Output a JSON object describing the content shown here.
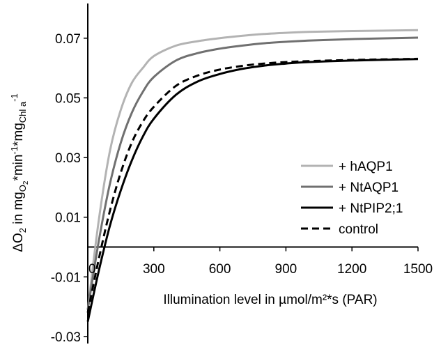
{
  "chart_data": {
    "type": "line",
    "title": "",
    "xlabel": "Illumination level in µmol/m²*s (PAR)",
    "ylabel": {
      "parts": [
        "ΔO",
        "2",
        " in mg",
        "O",
        "2",
        "*min",
        "-1",
        "*mg",
        "Chl a",
        "-1"
      ]
    },
    "xlim": [
      0,
      1500
    ],
    "ylim": [
      -0.03,
      0.08
    ],
    "xticks": [
      0,
      300,
      600,
      900,
      1200,
      1500
    ],
    "xtick_labels": [
      "0",
      "300",
      "600",
      "900",
      "1200",
      "1500"
    ],
    "yticks": [
      -0.03,
      -0.01,
      0.01,
      0.03,
      0.05,
      0.07
    ],
    "ytick_labels": [
      "-0.03",
      "-0.01",
      "0.01",
      "0.03",
      "0.05",
      "0.07"
    ],
    "legend_position": "lower-right",
    "grid": false,
    "series": [
      {
        "name": "+ hAQP1",
        "color": "#b3b3b3",
        "dash": "solid",
        "x": [
          0,
          50,
          100,
          150,
          200,
          250,
          300,
          400,
          500,
          600,
          700,
          800,
          900,
          1000,
          1200,
          1500
        ],
        "y": [
          -0.021,
          0.009,
          0.032,
          0.046,
          0.055,
          0.06,
          0.064,
          0.0675,
          0.069,
          0.07,
          0.0708,
          0.0714,
          0.0718,
          0.0721,
          0.0724,
          0.0727
        ]
      },
      {
        "name": "+ NtAQP1",
        "color": "#707070",
        "dash": "solid",
        "x": [
          0,
          50,
          100,
          150,
          200,
          250,
          300,
          400,
          500,
          600,
          700,
          800,
          900,
          1000,
          1200,
          1500
        ],
        "y": [
          -0.021,
          0.002,
          0.021,
          0.035,
          0.045,
          0.052,
          0.057,
          0.0625,
          0.065,
          0.0665,
          0.0675,
          0.0683,
          0.0688,
          0.0692,
          0.0697,
          0.0702
        ]
      },
      {
        "name": "+ NtPIP2;1",
        "color": "#000000",
        "dash": "solid",
        "x": [
          0,
          50,
          100,
          150,
          200,
          250,
          300,
          400,
          500,
          600,
          700,
          800,
          900,
          1000,
          1200,
          1500
        ],
        "y": [
          -0.025,
          -0.008,
          0.007,
          0.019,
          0.029,
          0.037,
          0.043,
          0.051,
          0.0555,
          0.058,
          0.0597,
          0.0608,
          0.0615,
          0.062,
          0.0625,
          0.063
        ]
      },
      {
        "name": "control",
        "color": "#000000",
        "dash": "dashed",
        "x": [
          0,
          50,
          100,
          150,
          200,
          250,
          300,
          400,
          500,
          600,
          700,
          800,
          900,
          1000,
          1200,
          1500
        ],
        "y": [
          -0.022,
          -0.004,
          0.012,
          0.025,
          0.035,
          0.042,
          0.047,
          0.054,
          0.0575,
          0.0595,
          0.0607,
          0.0615,
          0.062,
          0.0623,
          0.0627,
          0.0631
        ]
      }
    ]
  }
}
